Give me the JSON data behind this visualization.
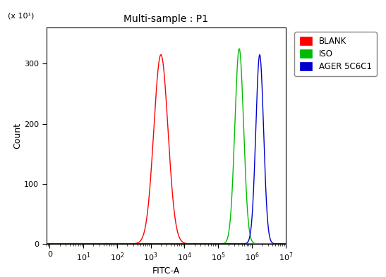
{
  "title": "Multi-sample : P1",
  "xlabel": "FITC-A",
  "ylabel": "Count",
  "ylabel_multiplier": "(x 10¹)",
  "xlim_low": 0.8,
  "xlim_high": 10000000.0,
  "ylim": [
    0,
    360
  ],
  "yticks": [
    0,
    100,
    200,
    300
  ],
  "background_color": "#ffffff",
  "plot_bg_color": "#ffffff",
  "curves": [
    {
      "label": "BLANK",
      "color": "#ff0000",
      "peak_x": 2000,
      "peak_y": 315,
      "sigma": 0.21
    },
    {
      "label": "ISO",
      "color": "#00bb00",
      "peak_x": 420000,
      "peak_y": 325,
      "sigma": 0.13
    },
    {
      "label": "AGER 5C6C1",
      "color": "#0000cc",
      "peak_x": 1700000,
      "peak_y": 315,
      "sigma": 0.115
    }
  ],
  "legend_colors": [
    "#ff0000",
    "#00bb00",
    "#0000cc"
  ],
  "legend_labels": [
    "BLANK",
    "ISO",
    "AGER 5C6C1"
  ],
  "xtick_positions": [
    1,
    10,
    100,
    1000,
    10000,
    100000,
    1000000,
    10000000
  ],
  "xtick_labels": [
    "0",
    "10$^1$",
    "10$^2$",
    "10$^3$",
    "10$^4$",
    "10$^5$",
    "10$^6$",
    "10$^7$"
  ]
}
